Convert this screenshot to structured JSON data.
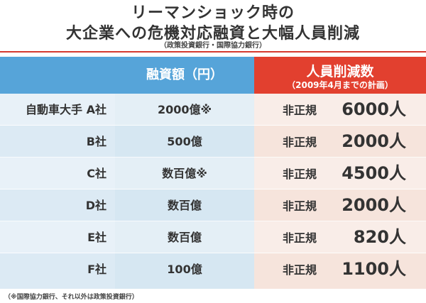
{
  "header": {
    "title_line1": "リーマンショック時の",
    "title_line2": "大企業への危機対応融資と大幅人員削減",
    "source": "（政策投資銀行・国際協力銀行）"
  },
  "table": {
    "columns": {
      "loan": "融資額（円）",
      "cut_main": "人員削減数",
      "cut_sub": "（2009年4月までの計画）"
    },
    "rows": [
      {
        "company": "自動車大手 A社",
        "loan": "2000億※",
        "cut_label": "非正規",
        "cut_value": "6000人"
      },
      {
        "company": "B社",
        "loan": "500億",
        "cut_label": "非正規",
        "cut_value": "2000人"
      },
      {
        "company": "C社",
        "loan": "数百億※",
        "cut_label": "非正規",
        "cut_value": "4500人"
      },
      {
        "company": "D社",
        "loan": "数百億",
        "cut_label": "非正規",
        "cut_value": "2000人"
      },
      {
        "company": "E社",
        "loan": "数百億",
        "cut_label": "非正規",
        "cut_value": "820人"
      },
      {
        "company": "F社",
        "loan": "100億",
        "cut_label": "非正規",
        "cut_value": "1100人"
      }
    ]
  },
  "footnote": "（※国際協力銀行、それ以外は政策投資銀行）",
  "colors": {
    "header_blue": "#56a4d9",
    "header_red": "#e2402f",
    "rule_red": "#d63a2f"
  }
}
